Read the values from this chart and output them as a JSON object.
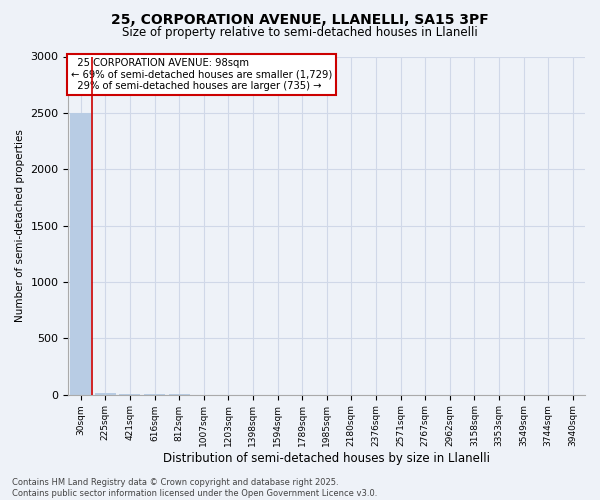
{
  "title_line1": "25, CORPORATION AVENUE, LLANELLI, SA15 3PF",
  "title_line2": "Size of property relative to semi-detached houses in Llanelli",
  "xlabel": "Distribution of semi-detached houses by size in Llanelli",
  "ylabel": "Number of semi-detached properties",
  "annotation_line1": "  25 CORPORATION AVENUE: 98sqm",
  "annotation_line2": "← 69% of semi-detached houses are smaller (1,729)",
  "annotation_line3": "  29% of semi-detached houses are larger (735) →",
  "categories": [
    "30sqm",
    "225sqm",
    "421sqm",
    "616sqm",
    "812sqm",
    "1007sqm",
    "1203sqm",
    "1398sqm",
    "1594sqm",
    "1789sqm",
    "1985sqm",
    "2180sqm",
    "2376sqm",
    "2571sqm",
    "2767sqm",
    "2962sqm",
    "3158sqm",
    "3353sqm",
    "3549sqm",
    "3744sqm",
    "3940sqm"
  ],
  "values": [
    2500,
    12,
    3,
    1,
    1,
    0,
    0,
    0,
    0,
    0,
    0,
    0,
    0,
    0,
    0,
    0,
    0,
    0,
    0,
    0,
    0
  ],
  "bar_color": "#b8cce4",
  "annotation_box_facecolor": "#ffffff",
  "annotation_box_edgecolor": "#cc0000",
  "ylim": [
    0,
    3000
  ],
  "yticks": [
    0,
    500,
    1000,
    1500,
    2000,
    2500,
    3000
  ],
  "grid_color": "#d0d8e8",
  "background_color": "#eef2f8",
  "footer_line1": "Contains HM Land Registry data © Crown copyright and database right 2025.",
  "footer_line2": "Contains public sector information licensed under the Open Government Licence v3.0.",
  "vline_x": 0.47,
  "vline_color": "#cc0000"
}
